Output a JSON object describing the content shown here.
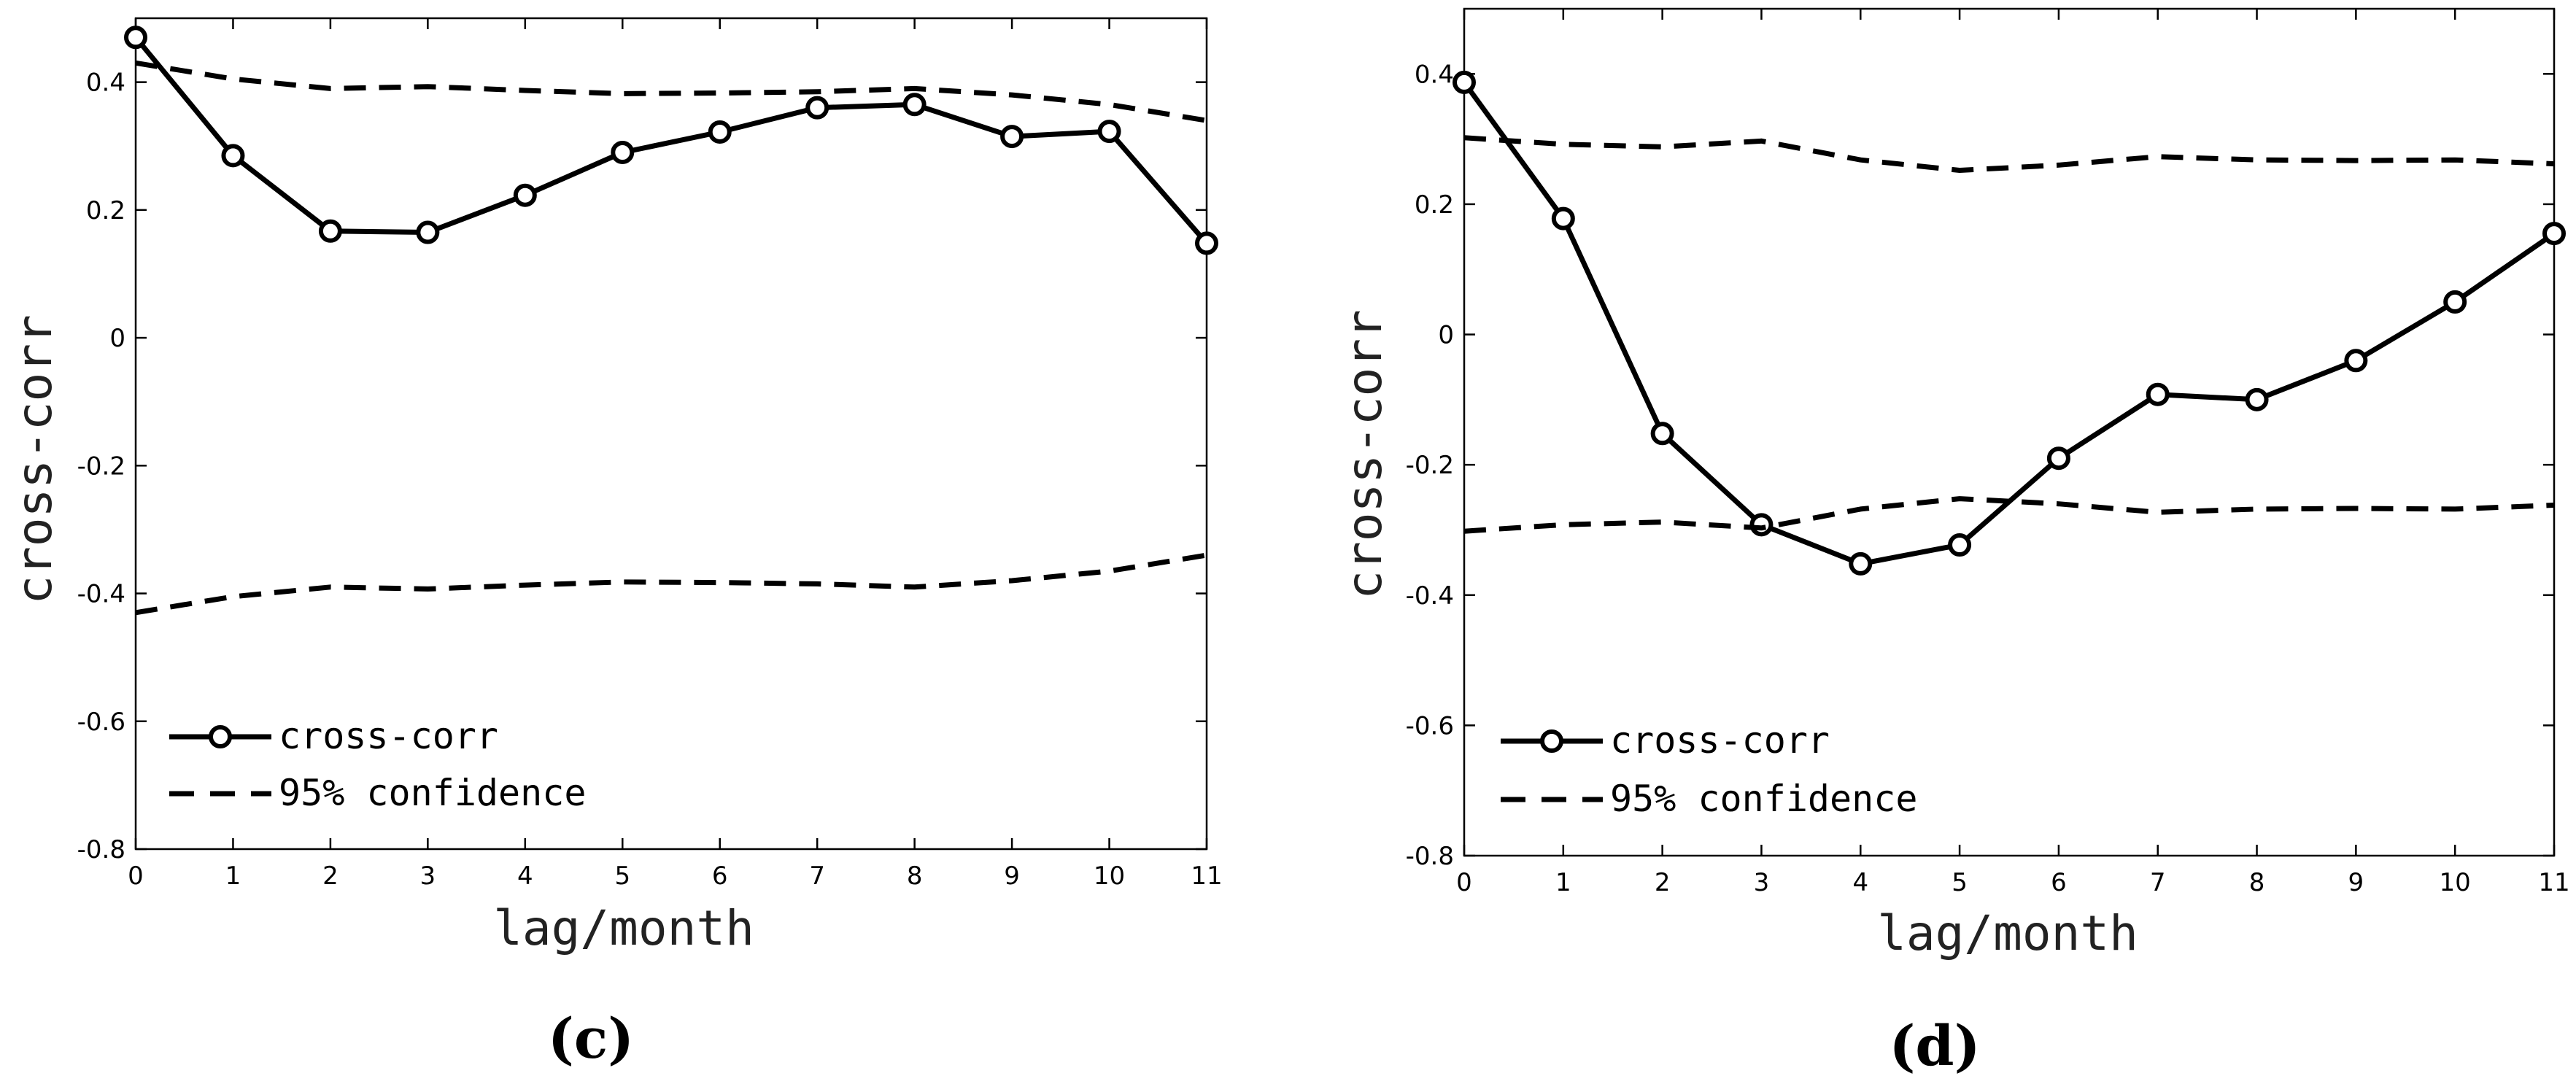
{
  "chart_data": [
    {
      "type": "line",
      "panel_label": "(c)",
      "xlabel": "lag/month",
      "ylabel": "cross-corr",
      "xlim": [
        0,
        11
      ],
      "ylim": [
        -0.8,
        0.5
      ],
      "x_ticks": [
        0,
        1,
        2,
        3,
        4,
        5,
        6,
        7,
        8,
        9,
        10,
        11
      ],
      "x_tick_labels": [
        "0",
        "1",
        "2",
        "3",
        "4",
        "5",
        "6",
        "7",
        "8",
        "9",
        "10",
        "11"
      ],
      "y_ticks": [
        -0.8,
        -0.6,
        -0.4,
        -0.2,
        0,
        0.2,
        0.4
      ],
      "y_tick_labels": [
        "-0.8",
        "-0.6",
        "-0.4",
        "-0.2",
        "0",
        "0.2",
        "0.4"
      ],
      "legend_position": "bottom-left",
      "x": [
        0,
        1,
        2,
        3,
        4,
        5,
        6,
        7,
        8,
        9,
        10,
        11
      ],
      "series": [
        {
          "name": "cross-corr",
          "style": "solid-circle",
          "values": [
            0.47,
            0.285,
            0.167,
            0.165,
            0.223,
            0.29,
            0.322,
            0.36,
            0.365,
            0.315,
            0.323,
            0.148
          ]
        },
        {
          "name": "95% confidence",
          "style": "dashed",
          "values": [
            0.43,
            0.405,
            0.39,
            0.393,
            0.387,
            0.382,
            0.383,
            0.385,
            0.39,
            0.38,
            0.365,
            0.34
          ]
        },
        {
          "name": "95% confidence (lower)",
          "style": "dashed",
          "in_legend": false,
          "values": [
            -0.43,
            -0.405,
            -0.39,
            -0.393,
            -0.387,
            -0.382,
            -0.383,
            -0.385,
            -0.39,
            -0.38,
            -0.365,
            -0.34
          ]
        }
      ]
    },
    {
      "type": "line",
      "panel_label": "(d)",
      "xlabel": "lag/month",
      "ylabel": "cross-corr",
      "xlim": [
        0,
        11
      ],
      "ylim": [
        -0.8,
        0.5
      ],
      "x_ticks": [
        0,
        1,
        2,
        3,
        4,
        5,
        6,
        7,
        8,
        9,
        10,
        11
      ],
      "x_tick_labels": [
        "0",
        "1",
        "2",
        "3",
        "4",
        "5",
        "6",
        "7",
        "8",
        "9",
        "10",
        "11"
      ],
      "y_ticks": [
        -0.8,
        -0.6,
        -0.4,
        -0.2,
        0,
        0.2,
        0.4
      ],
      "y_tick_labels": [
        "-0.8",
        "-0.6",
        "-0.4",
        "-0.2",
        "0",
        "0.2",
        "0.4"
      ],
      "legend_position": "bottom-left",
      "x": [
        0,
        1,
        2,
        3,
        4,
        5,
        6,
        7,
        8,
        9,
        10,
        11
      ],
      "series": [
        {
          "name": "cross-corr",
          "style": "solid-circle",
          "values": [
            0.387,
            0.178,
            -0.152,
            -0.292,
            -0.352,
            -0.323,
            -0.19,
            -0.092,
            -0.1,
            -0.04,
            0.05,
            0.155
          ]
        },
        {
          "name": "95% confidence",
          "style": "dashed",
          "values": [
            0.302,
            0.292,
            0.288,
            0.297,
            0.268,
            0.252,
            0.26,
            0.273,
            0.268,
            0.267,
            0.268,
            0.262
          ]
        },
        {
          "name": "95% confidence (lower)",
          "style": "dashed",
          "in_legend": false,
          "values": [
            -0.302,
            -0.292,
            -0.288,
            -0.297,
            -0.268,
            -0.252,
            -0.26,
            -0.273,
            -0.268,
            -0.267,
            -0.268,
            -0.262
          ]
        }
      ]
    }
  ]
}
